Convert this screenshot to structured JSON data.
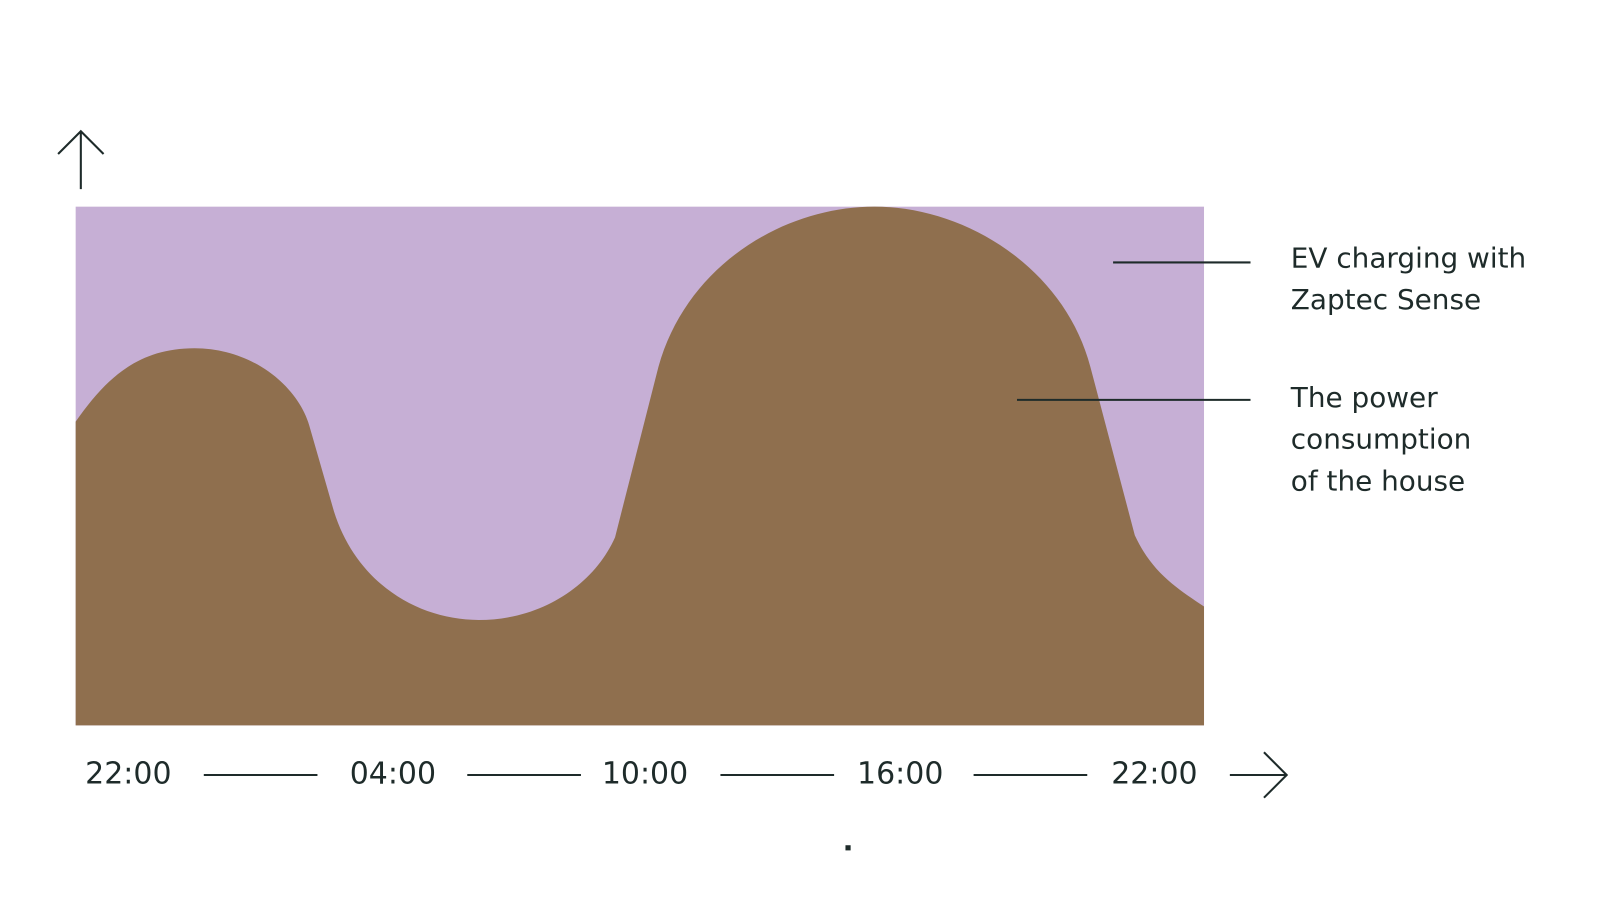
{
  "x_axis": {
    "labels": [
      "22:00",
      "04:00",
      "10:00",
      "16:00",
      "22:00"
    ]
  },
  "legend": [
    {
      "lines": [
        "EV charging with",
        "Zaptec Sense"
      ]
    },
    {
      "lines": [
        "The power",
        "consumption",
        "of the house"
      ]
    }
  ]
}
